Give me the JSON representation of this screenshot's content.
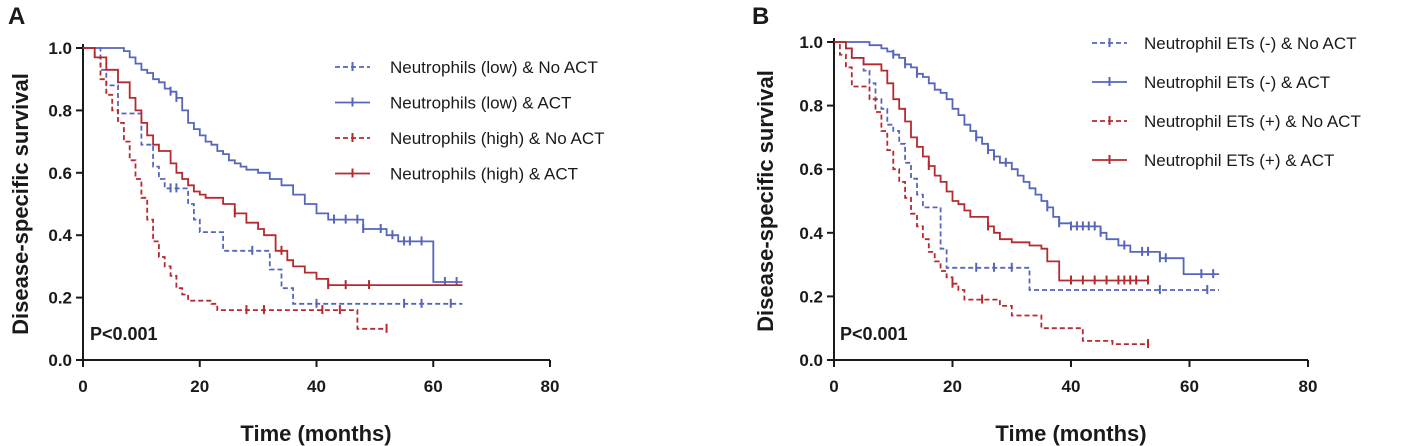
{
  "colors": {
    "blue": "#5566bb",
    "red": "#b52a2e",
    "axis": "#1a1a1a"
  },
  "chart_data": [
    {
      "type": "line",
      "subtype": "kaplan-meier",
      "panel": "A",
      "xlabel": "Time (months)",
      "ylabel": "Disease-specific survival",
      "xlim": [
        0,
        80
      ],
      "ylim": [
        0,
        1
      ],
      "xticks": [
        "0",
        "20",
        "40",
        "60",
        "80"
      ],
      "yticks": [
        "0.0",
        "0.2",
        "0.4",
        "0.6",
        "0.8",
        "1.0"
      ],
      "annotation": "P<0.001",
      "legend_position": "top-right",
      "series": [
        {
          "name": "Neutrophils (low) & No ACT",
          "color": "blue",
          "dash": true,
          "steps": [
            [
              0,
              1.0
            ],
            [
              3,
              0.93
            ],
            [
              4,
              0.88
            ],
            [
              6,
              0.79
            ],
            [
              9,
              0.79
            ],
            [
              10,
              0.69
            ],
            [
              12,
              0.62
            ],
            [
              13,
              0.58
            ],
            [
              14,
              0.55
            ],
            [
              17,
              0.55
            ],
            [
              18,
              0.5
            ],
            [
              19,
              0.45
            ],
            [
              20,
              0.41
            ],
            [
              22,
              0.41
            ],
            [
              24,
              0.35
            ],
            [
              31,
              0.35
            ],
            [
              32,
              0.29
            ],
            [
              34,
              0.23
            ],
            [
              36,
              0.18
            ],
            [
              65,
              0.18
            ]
          ],
          "censor": [
            15,
            16,
            29,
            40,
            55,
            58,
            63
          ]
        },
        {
          "name": "Neutrophils (low) & ACT",
          "color": "blue",
          "dash": false,
          "steps": [
            [
              0,
              1.0
            ],
            [
              7,
              0.99
            ],
            [
              8,
              0.97
            ],
            [
              9,
              0.95
            ],
            [
              10,
              0.93
            ],
            [
              11,
              0.92
            ],
            [
              12,
              0.9
            ],
            [
              13,
              0.89
            ],
            [
              14,
              0.87
            ],
            [
              15,
              0.86
            ],
            [
              16,
              0.84
            ],
            [
              17,
              0.8
            ],
            [
              18,
              0.76
            ],
            [
              19,
              0.74
            ],
            [
              20,
              0.72
            ],
            [
              21,
              0.7
            ],
            [
              22,
              0.69
            ],
            [
              23,
              0.67
            ],
            [
              24,
              0.66
            ],
            [
              25,
              0.64
            ],
            [
              26,
              0.63
            ],
            [
              27,
              0.62
            ],
            [
              28,
              0.61
            ],
            [
              30,
              0.6
            ],
            [
              32,
              0.58
            ],
            [
              34,
              0.56
            ],
            [
              36,
              0.53
            ],
            [
              38,
              0.5
            ],
            [
              40,
              0.47
            ],
            [
              42,
              0.45
            ],
            [
              48,
              0.42
            ],
            [
              52,
              0.4
            ],
            [
              54,
              0.38
            ],
            [
              59,
              0.38
            ],
            [
              60,
              0.25
            ],
            [
              65,
              0.25
            ]
          ],
          "censor": [
            15,
            16,
            43,
            45,
            47,
            48,
            51,
            53,
            55,
            56,
            58,
            62,
            64
          ]
        },
        {
          "name": "Neutrophils (high) & No ACT",
          "color": "red",
          "dash": true,
          "steps": [
            [
              0,
              1.0
            ],
            [
              2,
              0.97
            ],
            [
              3,
              0.9
            ],
            [
              4,
              0.85
            ],
            [
              5,
              0.8
            ],
            [
              6,
              0.76
            ],
            [
              7,
              0.7
            ],
            [
              8,
              0.64
            ],
            [
              9,
              0.58
            ],
            [
              10,
              0.52
            ],
            [
              11,
              0.45
            ],
            [
              12,
              0.38
            ],
            [
              13,
              0.33
            ],
            [
              14,
              0.3
            ],
            [
              15,
              0.27
            ],
            [
              16,
              0.23
            ],
            [
              17,
              0.21
            ],
            [
              18,
              0.19
            ],
            [
              22,
              0.18
            ],
            [
              23,
              0.16
            ],
            [
              46,
              0.16
            ],
            [
              47,
              0.1
            ],
            [
              52,
              0.1
            ]
          ],
          "censor": [
            28,
            31,
            41,
            44,
            52
          ]
        },
        {
          "name": "Neutrophils (high) & ACT",
          "color": "red",
          "dash": false,
          "steps": [
            [
              0,
              1.0
            ],
            [
              2,
              0.97
            ],
            [
              4,
              0.93
            ],
            [
              6,
              0.89
            ],
            [
              8,
              0.84
            ],
            [
              9,
              0.8
            ],
            [
              10,
              0.76
            ],
            [
              11,
              0.72
            ],
            [
              12,
              0.69
            ],
            [
              13,
              0.67
            ],
            [
              15,
              0.63
            ],
            [
              16,
              0.6
            ],
            [
              17,
              0.58
            ],
            [
              18,
              0.56
            ],
            [
              19,
              0.54
            ],
            [
              20,
              0.53
            ],
            [
              21,
              0.52
            ],
            [
              24,
              0.5
            ],
            [
              26,
              0.47
            ],
            [
              28,
              0.44
            ],
            [
              30,
              0.42
            ],
            [
              31,
              0.4
            ],
            [
              33,
              0.35
            ],
            [
              35,
              0.32
            ],
            [
              36,
              0.3
            ],
            [
              38,
              0.28
            ],
            [
              40,
              0.26
            ],
            [
              42,
              0.24
            ],
            [
              65,
              0.24
            ]
          ],
          "censor": [
            26,
            34,
            42,
            45,
            49
          ]
        }
      ]
    },
    {
      "type": "line",
      "subtype": "kaplan-meier",
      "panel": "B",
      "xlabel": "Time (months)",
      "ylabel": "Disease-specific survival",
      "xlim": [
        0,
        80
      ],
      "ylim": [
        0,
        1
      ],
      "xticks": [
        "0",
        "20",
        "40",
        "60",
        "80"
      ],
      "yticks": [
        "0.0",
        "0.2",
        "0.4",
        "0.6",
        "0.8",
        "1.0"
      ],
      "annotation": "P<0.001",
      "legend_position": "top-right",
      "series": [
        {
          "name": "Neutrophil ETs (-) & No ACT",
          "color": "blue",
          "dash": true,
          "steps": [
            [
              0,
              1.0
            ],
            [
              2,
              0.98
            ],
            [
              3,
              0.95
            ],
            [
              5,
              0.91
            ],
            [
              6,
              0.87
            ],
            [
              7,
              0.82
            ],
            [
              8,
              0.79
            ],
            [
              9,
              0.74
            ],
            [
              10,
              0.72
            ],
            [
              11,
              0.68
            ],
            [
              12,
              0.62
            ],
            [
              13,
              0.57
            ],
            [
              14,
              0.52
            ],
            [
              15,
              0.48
            ],
            [
              17,
              0.48
            ],
            [
              18,
              0.35
            ],
            [
              19,
              0.29
            ],
            [
              32,
              0.29
            ],
            [
              33,
              0.22
            ],
            [
              65,
              0.22
            ]
          ],
          "censor": [
            24,
            27,
            30,
            55,
            63
          ]
        },
        {
          "name": "Neutrophil ETs (-) & ACT",
          "color": "blue",
          "dash": false,
          "steps": [
            [
              0,
              1.0
            ],
            [
              6,
              0.99
            ],
            [
              8,
              0.98
            ],
            [
              9,
              0.97
            ],
            [
              10,
              0.96
            ],
            [
              11,
              0.95
            ],
            [
              12,
              0.93
            ],
            [
              13,
              0.92
            ],
            [
              14,
              0.9
            ],
            [
              15,
              0.89
            ],
            [
              16,
              0.87
            ],
            [
              17,
              0.85
            ],
            [
              18,
              0.84
            ],
            [
              19,
              0.82
            ],
            [
              20,
              0.79
            ],
            [
              21,
              0.77
            ],
            [
              22,
              0.74
            ],
            [
              23,
              0.72
            ],
            [
              24,
              0.7
            ],
            [
              25,
              0.68
            ],
            [
              26,
              0.66
            ],
            [
              27,
              0.64
            ],
            [
              28,
              0.62
            ],
            [
              30,
              0.6
            ],
            [
              31,
              0.58
            ],
            [
              32,
              0.56
            ],
            [
              33,
              0.54
            ],
            [
              34,
              0.52
            ],
            [
              35,
              0.5
            ],
            [
              36,
              0.48
            ],
            [
              37,
              0.45
            ],
            [
              38,
              0.43
            ],
            [
              40,
              0.42
            ],
            [
              45,
              0.4
            ],
            [
              46,
              0.38
            ],
            [
              48,
              0.36
            ],
            [
              50,
              0.34
            ],
            [
              55,
              0.32
            ],
            [
              59,
              0.27
            ],
            [
              65,
              0.27
            ]
          ],
          "censor": [
            10,
            12,
            14,
            24,
            26,
            27,
            29,
            36,
            38,
            40,
            41,
            42,
            43,
            44,
            45,
            49,
            52,
            53,
            55,
            56,
            62,
            64
          ]
        },
        {
          "name": "Neutrophil ETs (+) & No ACT",
          "color": "red",
          "dash": true,
          "steps": [
            [
              0,
              1.0
            ],
            [
              1,
              0.96
            ],
            [
              2,
              0.92
            ],
            [
              3,
              0.86
            ],
            [
              5,
              0.86
            ],
            [
              6,
              0.82
            ],
            [
              7,
              0.78
            ],
            [
              8,
              0.72
            ],
            [
              9,
              0.66
            ],
            [
              10,
              0.6
            ],
            [
              11,
              0.56
            ],
            [
              12,
              0.51
            ],
            [
              13,
              0.46
            ],
            [
              14,
              0.42
            ],
            [
              15,
              0.38
            ],
            [
              16,
              0.34
            ],
            [
              17,
              0.31
            ],
            [
              18,
              0.28
            ],
            [
              19,
              0.26
            ],
            [
              20,
              0.24
            ],
            [
              21,
              0.22
            ],
            [
              22,
              0.19
            ],
            [
              27,
              0.19
            ],
            [
              28,
              0.17
            ],
            [
              30,
              0.14
            ],
            [
              32,
              0.14
            ],
            [
              35,
              0.1
            ],
            [
              40,
              0.1
            ],
            [
              42,
              0.06
            ],
            [
              47,
              0.05
            ],
            [
              53,
              0.05
            ]
          ],
          "censor": [
            20,
            25,
            53
          ]
        },
        {
          "name": "Neutrophil ETs (+) & ACT",
          "color": "red",
          "dash": false,
          "steps": [
            [
              0,
              1.0
            ],
            [
              2,
              0.98
            ],
            [
              3,
              0.95
            ],
            [
              5,
              0.93
            ],
            [
              8,
              0.91
            ],
            [
              9,
              0.87
            ],
            [
              10,
              0.82
            ],
            [
              11,
              0.79
            ],
            [
              12,
              0.75
            ],
            [
              13,
              0.7
            ],
            [
              14,
              0.67
            ],
            [
              15,
              0.64
            ],
            [
              16,
              0.61
            ],
            [
              17,
              0.58
            ],
            [
              18,
              0.56
            ],
            [
              19,
              0.53
            ],
            [
              20,
              0.5
            ],
            [
              21,
              0.49
            ],
            [
              22,
              0.47
            ],
            [
              23,
              0.45
            ],
            [
              26,
              0.42
            ],
            [
              27,
              0.4
            ],
            [
              28,
              0.38
            ],
            [
              30,
              0.37
            ],
            [
              33,
              0.36
            ],
            [
              35,
              0.35
            ],
            [
              36,
              0.31
            ],
            [
              38,
              0.25
            ],
            [
              53,
              0.25
            ]
          ],
          "censor": [
            16,
            26,
            40,
            42,
            44,
            46,
            48,
            49,
            50,
            51,
            53
          ]
        }
      ]
    }
  ]
}
